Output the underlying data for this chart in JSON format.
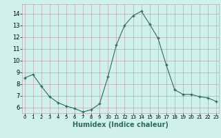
{
  "x": [
    0,
    1,
    2,
    3,
    4,
    5,
    6,
    7,
    8,
    9,
    10,
    11,
    12,
    13,
    14,
    15,
    16,
    17,
    18,
    19,
    20,
    21,
    22,
    23
  ],
  "y": [
    8.5,
    8.8,
    7.8,
    6.9,
    6.4,
    6.1,
    5.9,
    5.6,
    5.8,
    6.3,
    8.6,
    11.3,
    13.0,
    13.8,
    14.2,
    13.1,
    11.9,
    9.6,
    7.5,
    7.1,
    7.1,
    6.9,
    6.8,
    6.5
  ],
  "line_color": "#2e6b5e",
  "marker": "+",
  "marker_size": 3.5,
  "bg_color": "#cff0eb",
  "grid_color": "#bba8a8",
  "xlabel": "Humidex (Indice chaleur)",
  "xlabel_fontsize": 7,
  "yticks": [
    6,
    7,
    8,
    9,
    10,
    11,
    12,
    13,
    14
  ],
  "xticks": [
    0,
    1,
    2,
    3,
    4,
    5,
    6,
    7,
    8,
    9,
    10,
    11,
    12,
    13,
    14,
    15,
    16,
    17,
    18,
    19,
    20,
    21,
    22,
    23
  ],
  "ylim": [
    5.5,
    14.8
  ],
  "xlim": [
    -0.3,
    23.3
  ]
}
